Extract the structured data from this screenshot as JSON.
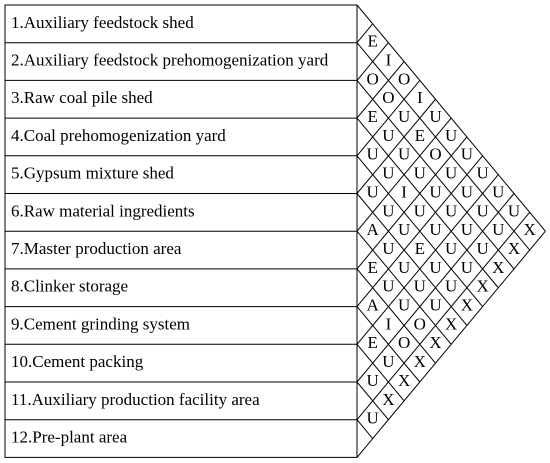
{
  "rows": [
    "1.Auxiliary feedstock shed",
    "2.Auxiliary feedstock prehomogenization yard",
    "3.Raw coal pile shed",
    "4.Coal prehomogenization yard",
    "5.Gypsum mixture shed",
    "6.Raw material ingredients",
    "7.Master production area",
    "8.Clinker storage",
    "9.Cement grinding system",
    "10.Cement packing",
    "11.Auxiliary production facility area",
    "12.Pre-plant area"
  ],
  "relationships": [
    [
      "E",
      "I",
      "O",
      "I",
      "U",
      "U",
      "U",
      "U",
      "U",
      "U",
      "X"
    ],
    [
      "O",
      "O",
      "U",
      "E",
      "O",
      "U",
      "U",
      "U",
      "U",
      "X"
    ],
    [
      "E",
      "U",
      "U",
      "U",
      "U",
      "U",
      "U",
      "U",
      "X"
    ],
    [
      "U",
      "U",
      "I",
      "U",
      "U",
      "U",
      "U",
      "X"
    ],
    [
      "U",
      "U",
      "U",
      "E",
      "U",
      "U",
      "X"
    ],
    [
      "A",
      "U",
      "U",
      "U",
      "U",
      "X"
    ],
    [
      "E",
      "U",
      "U",
      "O",
      "X"
    ],
    [
      "A",
      "I",
      "O",
      "X"
    ],
    [
      "E",
      "U",
      "X"
    ],
    [
      "U",
      "X"
    ],
    [
      "U"
    ]
  ]
}
